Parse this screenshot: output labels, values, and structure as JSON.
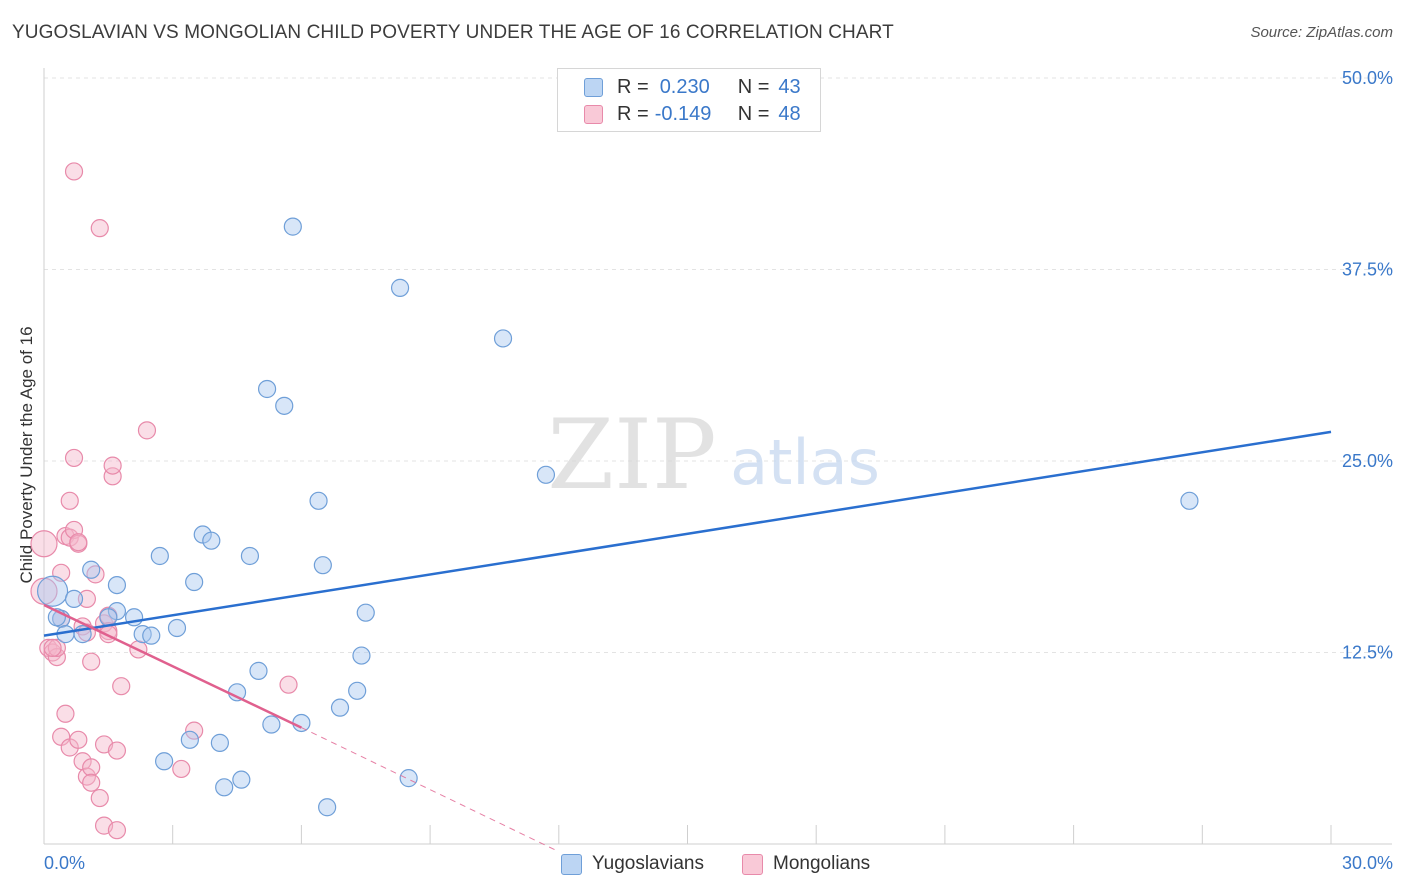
{
  "title": "YUGOSLAVIAN VS MONGOLIAN CHILD POVERTY UNDER THE AGE OF 16 CORRELATION CHART",
  "source": "Source: ZipAtlas.com",
  "watermark": {
    "zip": "ZIP",
    "atlas": "atlas"
  },
  "legend": {
    "rows": [
      {
        "r_label": "R =",
        "r_value": "0.230",
        "n_label": "N =",
        "n_value": "43"
      },
      {
        "r_label": "R =",
        "r_value": "-0.149",
        "n_label": "N =",
        "n_value": "48"
      }
    ]
  },
  "bottom_legend": [
    "Yugoslavians",
    "Mongolians"
  ],
  "colors": {
    "yugo_fill": "#a9c8f0",
    "yugo_stroke": "#6f9fd8",
    "yugo_line": "#2a6fcf",
    "mong_fill": "#f5b6c9",
    "mong_stroke": "#e88aaa",
    "mong_line": "#e0608e",
    "tick_text": "#3a78c9",
    "grid": "#e3e3e3"
  },
  "chart_data": {
    "type": "scatter",
    "title": "YUGOSLAVIAN VS MONGOLIAN CHILD POVERTY UNDER THE AGE OF 16 CORRELATION CHART",
    "xlabel": "",
    "ylabel": "Child Poverty Under the Age of 16",
    "xlim": [
      0,
      30
    ],
    "ylim": [
      0,
      50
    ],
    "x_tick_labels": [
      "0.0%",
      "30.0%"
    ],
    "y_ticks": [
      12.5,
      25.0,
      37.5,
      50.0
    ],
    "y_tick_labels": [
      "12.5%",
      "25.0%",
      "37.5%",
      "50.0%"
    ],
    "series": [
      {
        "name": "Yugoslavians",
        "r": 0.23,
        "n": 43,
        "trend": {
          "x0": 0,
          "y0": 13.6,
          "x1": 30,
          "y1": 26.9
        },
        "points": [
          [
            0.2,
            16.5
          ],
          [
            0.4,
            14.7
          ],
          [
            0.5,
            13.7
          ],
          [
            0.7,
            16.0
          ],
          [
            0.9,
            13.7
          ],
          [
            1.1,
            17.9
          ],
          [
            1.7,
            15.2
          ],
          [
            1.5,
            14.8
          ],
          [
            1.7,
            16.9
          ],
          [
            2.1,
            14.8
          ],
          [
            2.3,
            13.7
          ],
          [
            2.5,
            13.6
          ],
          [
            2.7,
            18.8
          ],
          [
            3.1,
            14.1
          ],
          [
            3.5,
            17.1
          ],
          [
            3.7,
            20.2
          ],
          [
            3.9,
            19.8
          ],
          [
            4.1,
            6.6
          ],
          [
            4.2,
            3.7
          ],
          [
            4.5,
            9.9
          ],
          [
            4.6,
            4.2
          ],
          [
            4.8,
            18.8
          ],
          [
            5.0,
            11.3
          ],
          [
            5.3,
            7.8
          ],
          [
            5.8,
            40.3
          ],
          [
            5.2,
            29.7
          ],
          [
            5.6,
            28.6
          ],
          [
            6.0,
            7.9
          ],
          [
            6.4,
            22.4
          ],
          [
            6.5,
            18.2
          ],
          [
            6.6,
            2.4
          ],
          [
            6.9,
            8.9
          ],
          [
            7.3,
            10.0
          ],
          [
            7.4,
            12.3
          ],
          [
            7.5,
            15.1
          ],
          [
            8.3,
            36.3
          ],
          [
            8.5,
            4.3
          ],
          [
            10.7,
            33.0
          ],
          [
            11.7,
            24.1
          ],
          [
            26.7,
            22.4
          ],
          [
            0.3,
            14.8
          ],
          [
            3.4,
            6.8
          ],
          [
            2.8,
            5.4
          ]
        ]
      },
      {
        "name": "Mongolians",
        "r": -0.149,
        "n": 48,
        "trend": {
          "x0": 0,
          "y0": 15.6,
          "x1": 6.0,
          "y1": 7.6
        },
        "trend_dashed": {
          "x0": 6.0,
          "y0": 7.6,
          "x1": 12.0,
          "y1": -0.5
        },
        "points": [
          [
            0.0,
            19.6
          ],
          [
            0.0,
            16.5
          ],
          [
            0.1,
            12.8
          ],
          [
            0.2,
            12.5
          ],
          [
            0.3,
            12.2
          ],
          [
            0.3,
            12.8
          ],
          [
            0.4,
            14.7
          ],
          [
            0.4,
            17.7
          ],
          [
            0.4,
            7.0
          ],
          [
            0.5,
            8.5
          ],
          [
            0.5,
            20.1
          ],
          [
            0.6,
            20.0
          ],
          [
            0.6,
            22.4
          ],
          [
            0.6,
            6.3
          ],
          [
            0.7,
            25.2
          ],
          [
            0.7,
            20.5
          ],
          [
            0.7,
            43.9
          ],
          [
            0.8,
            19.6
          ],
          [
            0.8,
            19.7
          ],
          [
            0.8,
            6.8
          ],
          [
            0.9,
            14.2
          ],
          [
            0.9,
            5.4
          ],
          [
            1.0,
            16.0
          ],
          [
            1.0,
            4.4
          ],
          [
            1.1,
            5.0
          ],
          [
            1.1,
            4.0
          ],
          [
            1.1,
            11.9
          ],
          [
            1.2,
            17.6
          ],
          [
            1.3,
            3.0
          ],
          [
            1.3,
            40.2
          ],
          [
            1.4,
            1.2
          ],
          [
            1.4,
            14.4
          ],
          [
            1.4,
            6.5
          ],
          [
            1.5,
            14.9
          ],
          [
            1.5,
            13.9
          ],
          [
            1.5,
            13.7
          ],
          [
            1.6,
            24.0
          ],
          [
            1.6,
            24.7
          ],
          [
            1.7,
            0.9
          ],
          [
            1.7,
            6.1
          ],
          [
            1.8,
            10.3
          ],
          [
            2.2,
            12.7
          ],
          [
            2.4,
            27.0
          ],
          [
            3.2,
            4.9
          ],
          [
            3.5,
            7.4
          ],
          [
            5.7,
            10.4
          ],
          [
            0.2,
            12.8
          ],
          [
            1.0,
            13.8
          ]
        ]
      }
    ]
  }
}
